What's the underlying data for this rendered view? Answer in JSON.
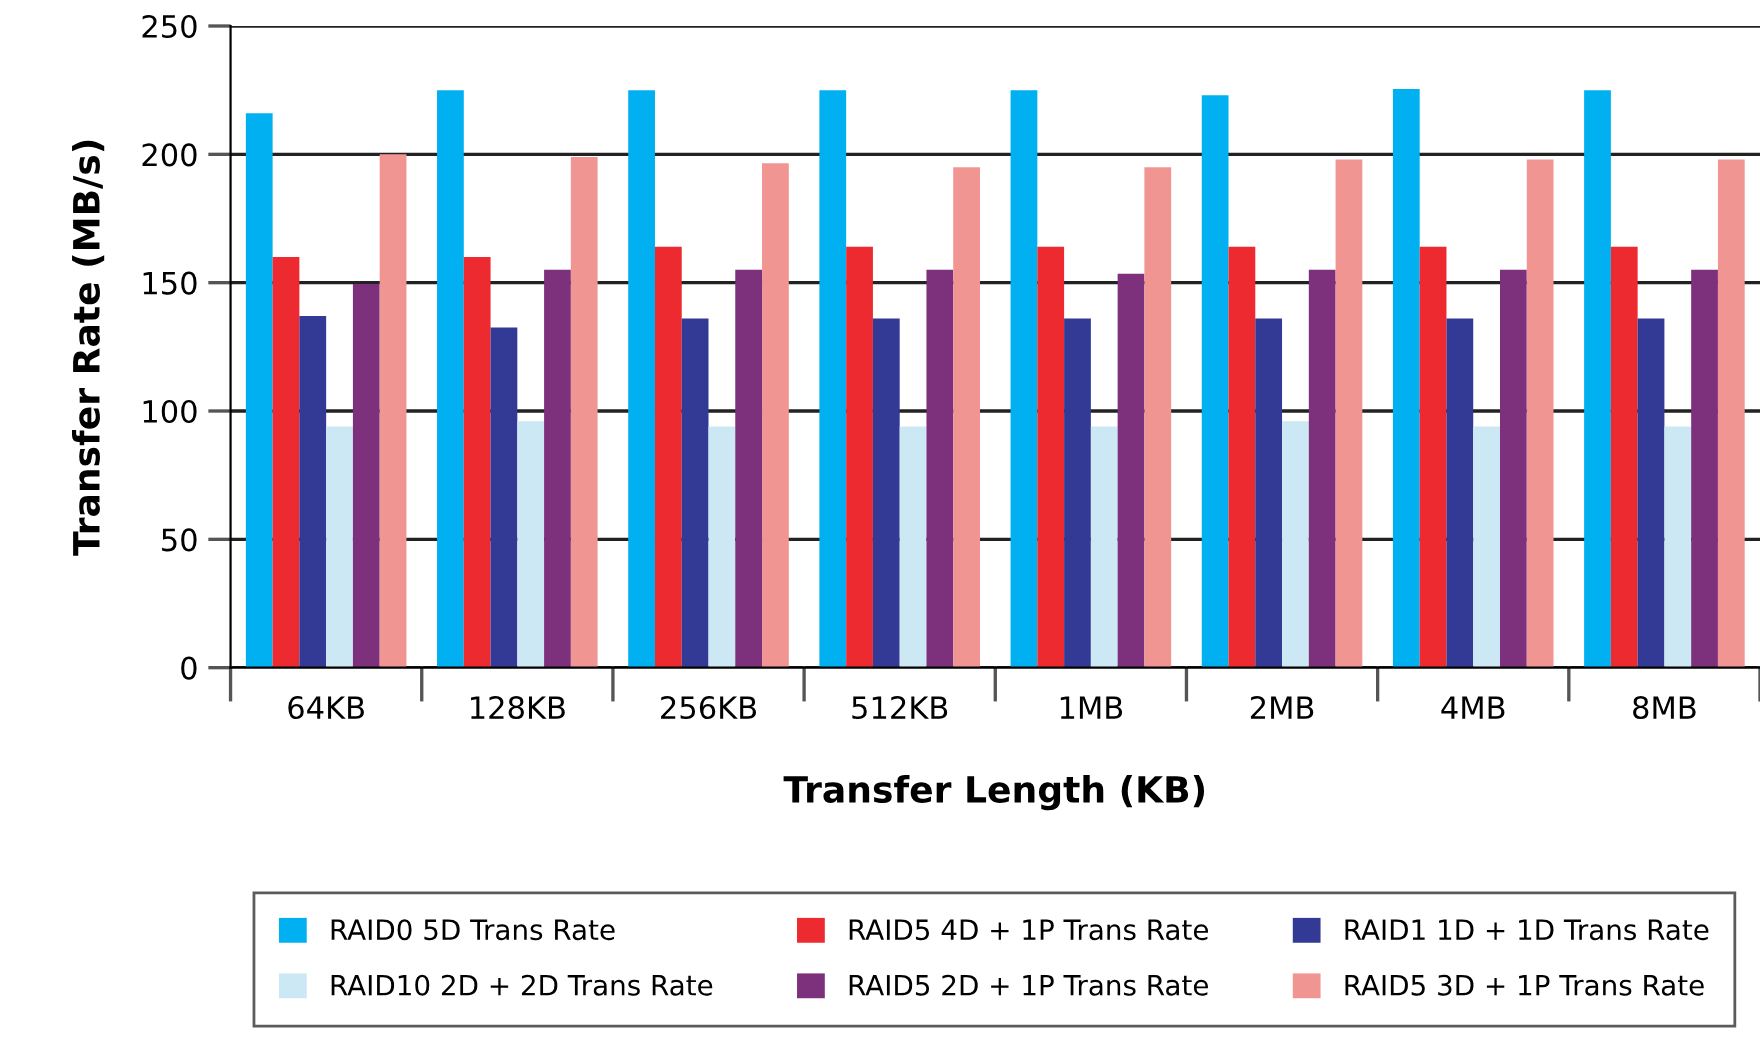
{
  "chart_data": {
    "type": "bar",
    "xlabel": "Transfer Length (KB)",
    "ylabel": "Transfer Rate (MB/s)",
    "categories": [
      "64KB",
      "128KB",
      "256KB",
      "512KB",
      "1MB",
      "2MB",
      "4MB",
      "8MB"
    ],
    "series": [
      {
        "name": "RAID0 5D Trans Rate",
        "color": "#00b0f0",
        "values": [
          216,
          225,
          225,
          225,
          225,
          223,
          225.5,
          225
        ]
      },
      {
        "name": "RAID5 4D + 1P Trans Rate",
        "color": "#ed2a2f",
        "values": [
          160,
          160,
          164,
          164,
          164,
          164,
          164,
          164
        ]
      },
      {
        "name": "RAID1 1D + 1D Trans Rate",
        "color": "#333a96",
        "values": [
          137,
          132.5,
          136,
          136,
          136,
          136,
          136,
          136
        ]
      },
      {
        "name": "RAID10 2D + 2D Trans Rate",
        "color": "#cbe8f4",
        "values": [
          94,
          96,
          94,
          94,
          94,
          96,
          94,
          94
        ]
      },
      {
        "name": "RAID5 2D + 1P Trans Rate",
        "color": "#7d307c",
        "values": [
          149.5,
          155,
          155,
          155,
          153.5,
          155,
          155,
          155
        ]
      },
      {
        "name": "RAID5 3D + 1P Trans Rate",
        "color": "#f19593",
        "values": [
          200,
          199,
          196.5,
          195,
          195,
          198,
          198,
          198
        ]
      }
    ],
    "ylim": [
      0,
      250
    ],
    "yticks": [
      0,
      50,
      100,
      150,
      200,
      250
    ],
    "grid": "y",
    "legend": "bottom"
  }
}
